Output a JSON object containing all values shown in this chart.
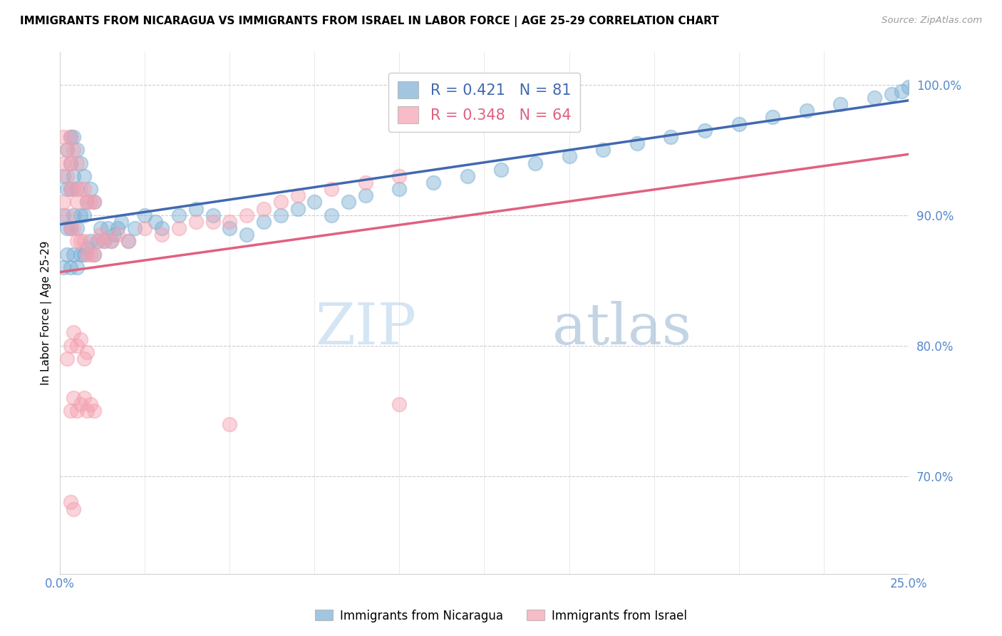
{
  "title": "IMMIGRANTS FROM NICARAGUA VS IMMIGRANTS FROM ISRAEL IN LABOR FORCE | AGE 25-29 CORRELATION CHART",
  "source": "Source: ZipAtlas.com",
  "ylabel": "In Labor Force | Age 25-29",
  "xlim": [
    0.0,
    0.25
  ],
  "ylim": [
    0.625,
    1.025
  ],
  "yticks": [
    0.7,
    0.8,
    0.9,
    1.0
  ],
  "ytick_labels": [
    "70.0%",
    "80.0%",
    "90.0%",
    "100.0%"
  ],
  "xtick_left_label": "0.0%",
  "xtick_right_label": "25.0%",
  "legend_r1": "R = 0.421",
  "legend_n1": "N = 81",
  "legend_r2": "R = 0.348",
  "legend_n2": "N = 64",
  "blue_color": "#7BAFD4",
  "pink_color": "#F4A0B0",
  "blue_line_color": "#4169B0",
  "pink_line_color": "#E06080",
  "tick_label_color": "#5588CC",
  "watermark_zip": "ZIP",
  "watermark_atlas": "atlas",
  "legend_label_1": "Immigrants from Nicaragua",
  "legend_label_2": "Immigrants from Israel",
  "blue_x": [
    0.001,
    0.001,
    0.001,
    0.002,
    0.002,
    0.002,
    0.002,
    0.003,
    0.003,
    0.003,
    0.003,
    0.003,
    0.004,
    0.004,
    0.004,
    0.004,
    0.005,
    0.005,
    0.005,
    0.005,
    0.006,
    0.006,
    0.006,
    0.007,
    0.007,
    0.007,
    0.008,
    0.008,
    0.009,
    0.009,
    0.01,
    0.01,
    0.011,
    0.012,
    0.013,
    0.014,
    0.015,
    0.016,
    0.017,
    0.018,
    0.02,
    0.022,
    0.025,
    0.028,
    0.03,
    0.035,
    0.04,
    0.045,
    0.05,
    0.055,
    0.06,
    0.065,
    0.07,
    0.075,
    0.08,
    0.085,
    0.09,
    0.1,
    0.11,
    0.12,
    0.13,
    0.14,
    0.15,
    0.16,
    0.17,
    0.18,
    0.19,
    0.2,
    0.21,
    0.22,
    0.23,
    0.24,
    0.245,
    0.248,
    0.25,
    0.252,
    0.255,
    0.258,
    0.26,
    0.262,
    0.265
  ],
  "blue_y": [
    0.86,
    0.9,
    0.93,
    0.87,
    0.89,
    0.92,
    0.95,
    0.86,
    0.89,
    0.92,
    0.94,
    0.96,
    0.87,
    0.9,
    0.93,
    0.96,
    0.86,
    0.89,
    0.92,
    0.95,
    0.87,
    0.9,
    0.94,
    0.87,
    0.9,
    0.93,
    0.875,
    0.91,
    0.88,
    0.92,
    0.87,
    0.91,
    0.88,
    0.89,
    0.88,
    0.89,
    0.88,
    0.885,
    0.89,
    0.895,
    0.88,
    0.89,
    0.9,
    0.895,
    0.89,
    0.9,
    0.905,
    0.9,
    0.89,
    0.885,
    0.895,
    0.9,
    0.905,
    0.91,
    0.9,
    0.91,
    0.915,
    0.92,
    0.925,
    0.93,
    0.935,
    0.94,
    0.945,
    0.95,
    0.955,
    0.96,
    0.965,
    0.97,
    0.975,
    0.98,
    0.985,
    0.99,
    0.993,
    0.995,
    0.998,
    1.0,
    0.998,
    0.997,
    0.996,
    0.998,
    0.999
  ],
  "pink_x": [
    0.001,
    0.001,
    0.001,
    0.002,
    0.002,
    0.002,
    0.003,
    0.003,
    0.003,
    0.003,
    0.004,
    0.004,
    0.004,
    0.005,
    0.005,
    0.005,
    0.006,
    0.006,
    0.007,
    0.007,
    0.008,
    0.008,
    0.009,
    0.009,
    0.01,
    0.01,
    0.011,
    0.012,
    0.013,
    0.015,
    0.017,
    0.02,
    0.025,
    0.03,
    0.035,
    0.04,
    0.045,
    0.05,
    0.055,
    0.06,
    0.065,
    0.07,
    0.08,
    0.09,
    0.1,
    0.002,
    0.003,
    0.004,
    0.005,
    0.006,
    0.007,
    0.008,
    0.003,
    0.004,
    0.005,
    0.006,
    0.007,
    0.008,
    0.009,
    0.01,
    0.003,
    0.004,
    0.05,
    0.1
  ],
  "pink_y": [
    0.91,
    0.94,
    0.96,
    0.9,
    0.93,
    0.95,
    0.89,
    0.92,
    0.94,
    0.96,
    0.89,
    0.92,
    0.95,
    0.88,
    0.91,
    0.94,
    0.88,
    0.92,
    0.88,
    0.92,
    0.87,
    0.91,
    0.87,
    0.91,
    0.87,
    0.91,
    0.88,
    0.885,
    0.88,
    0.88,
    0.885,
    0.88,
    0.89,
    0.885,
    0.89,
    0.895,
    0.895,
    0.895,
    0.9,
    0.905,
    0.91,
    0.915,
    0.92,
    0.925,
    0.93,
    0.79,
    0.8,
    0.81,
    0.8,
    0.805,
    0.79,
    0.795,
    0.75,
    0.76,
    0.75,
    0.755,
    0.76,
    0.75,
    0.755,
    0.75,
    0.68,
    0.675,
    0.74,
    0.755
  ]
}
